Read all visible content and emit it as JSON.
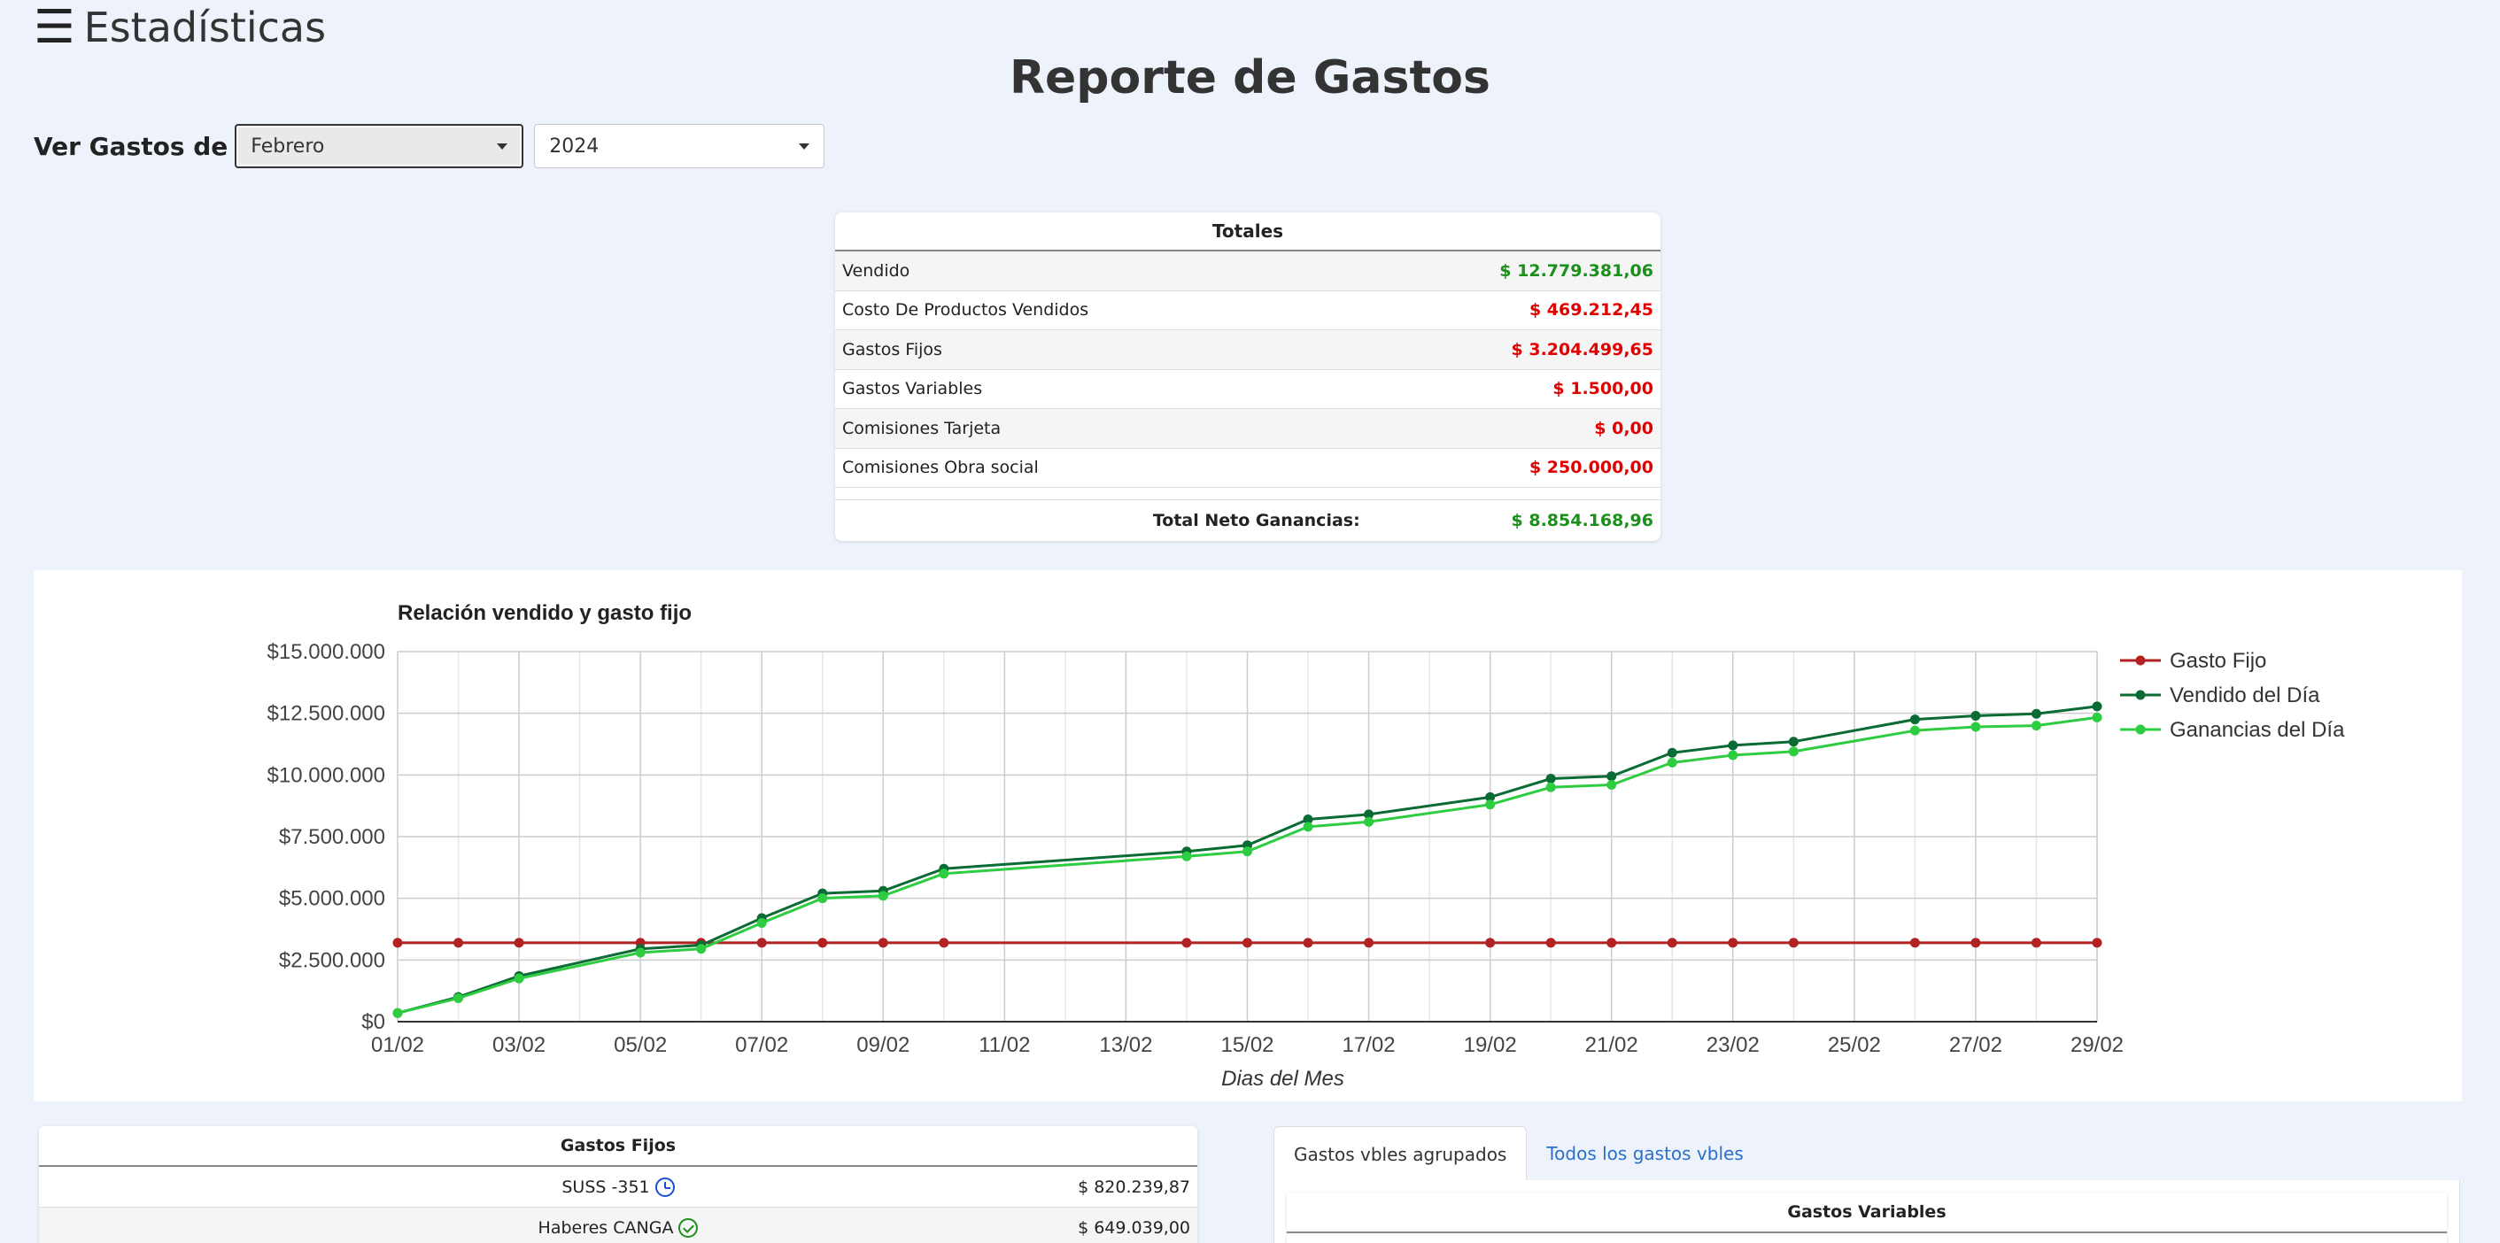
{
  "header": {
    "title": "Estadísticas",
    "menu_icon": "hamburger-icon"
  },
  "report": {
    "title": "Reporte de Gastos"
  },
  "filters": {
    "label": "Ver Gastos de",
    "month": "Febrero",
    "year": "2024"
  },
  "totals": {
    "title": "Totales",
    "rows": [
      {
        "label": "Vendido",
        "value": "$ 12.779.381,06",
        "color": "#1a8f1a"
      },
      {
        "label": "Costo De Productos Vendidos",
        "value": "$ 469.212,45",
        "color": "#e00000"
      },
      {
        "label": "Gastos Fijos",
        "value": "$ 3.204.499,65",
        "color": "#e00000"
      },
      {
        "label": "Gastos Variables",
        "value": "$ 1.500,00",
        "color": "#e00000"
      },
      {
        "label": "Comisiones Tarjeta",
        "value": "$ 0,00",
        "color": "#e00000"
      },
      {
        "label": "Comisiones Obra social",
        "value": "$ 250.000,00",
        "color": "#e00000"
      }
    ],
    "total_label": "Total Neto Ganancias:",
    "total_value": "$ 8.854.168,96"
  },
  "chart_data": {
    "type": "line",
    "title": "Relación vendido y gasto fijo",
    "xlabel": "Dias del Mes",
    "ylabel": "",
    "ylim": [
      0,
      15000000
    ],
    "yticks": [
      "$0",
      "$2.500.000",
      "$5.000.000",
      "$7.500.000",
      "$10.000.000",
      "$12.500.000",
      "$15.000.000"
    ],
    "xticks": [
      "01/02",
      "03/02",
      "05/02",
      "07/02",
      "09/02",
      "11/02",
      "13/02",
      "15/02",
      "17/02",
      "19/02",
      "21/02",
      "23/02",
      "25/02",
      "27/02",
      "29/02"
    ],
    "grid": true,
    "legend": "right",
    "series": [
      {
        "name": "Gasto Fijo",
        "color": "#b22222",
        "points": [
          [
            1,
            3200000
          ],
          [
            2,
            3200000
          ],
          [
            3,
            3200000
          ],
          [
            5,
            3200000
          ],
          [
            6,
            3200000
          ],
          [
            7,
            3200000
          ],
          [
            8,
            3200000
          ],
          [
            9,
            3200000
          ],
          [
            10,
            3200000
          ],
          [
            14,
            3200000
          ],
          [
            15,
            3200000
          ],
          [
            16,
            3200000
          ],
          [
            17,
            3200000
          ],
          [
            19,
            3200000
          ],
          [
            20,
            3200000
          ],
          [
            21,
            3200000
          ],
          [
            22,
            3200000
          ],
          [
            23,
            3200000
          ],
          [
            24,
            3200000
          ],
          [
            26,
            3200000
          ],
          [
            27,
            3200000
          ],
          [
            28,
            3200000
          ],
          [
            29,
            3200000
          ]
        ]
      },
      {
        "name": "Vendido del Día",
        "color": "#0b6b34",
        "points": [
          [
            1,
            350000
          ],
          [
            2,
            1000000
          ],
          [
            3,
            1850000
          ],
          [
            5,
            2950000
          ],
          [
            6,
            3100000
          ],
          [
            7,
            4200000
          ],
          [
            8,
            5200000
          ],
          [
            9,
            5300000
          ],
          [
            10,
            6200000
          ],
          [
            14,
            6900000
          ],
          [
            15,
            7150000
          ],
          [
            16,
            8200000
          ],
          [
            17,
            8400000
          ],
          [
            19,
            9100000
          ],
          [
            20,
            9850000
          ],
          [
            21,
            9950000
          ],
          [
            22,
            10900000
          ],
          [
            23,
            11200000
          ],
          [
            24,
            11350000
          ],
          [
            26,
            12250000
          ],
          [
            27,
            12400000
          ],
          [
            28,
            12480000
          ],
          [
            29,
            12780000
          ]
        ]
      },
      {
        "name": "Ganancias del Día",
        "color": "#2ecc40",
        "points": [
          [
            1,
            350000
          ],
          [
            2,
            950000
          ],
          [
            3,
            1750000
          ],
          [
            5,
            2800000
          ],
          [
            6,
            2950000
          ],
          [
            7,
            4000000
          ],
          [
            8,
            5000000
          ],
          [
            9,
            5100000
          ],
          [
            10,
            6000000
          ],
          [
            14,
            6700000
          ],
          [
            15,
            6900000
          ],
          [
            16,
            7900000
          ],
          [
            17,
            8100000
          ],
          [
            19,
            8800000
          ],
          [
            20,
            9500000
          ],
          [
            21,
            9600000
          ],
          [
            22,
            10500000
          ],
          [
            23,
            10800000
          ],
          [
            24,
            10950000
          ],
          [
            26,
            11800000
          ],
          [
            27,
            11950000
          ],
          [
            28,
            12000000
          ],
          [
            29,
            12330000
          ]
        ]
      }
    ]
  },
  "gastos_fijos": {
    "title": "Gastos Fijos",
    "rows": [
      {
        "name": "SUSS -351",
        "icon": "clock-icon",
        "amount": "$ 820.239,87"
      },
      {
        "name": "Haberes CANGA",
        "icon": "check-circle-icon",
        "amount": "$ 649.039,00"
      }
    ]
  },
  "tabs": [
    {
      "label": "Gastos vbles agrupados",
      "active": true
    },
    {
      "label": "Todos los gastos vbles",
      "active": false
    }
  ],
  "gastos_variables": {
    "title": "Gastos Variables"
  }
}
